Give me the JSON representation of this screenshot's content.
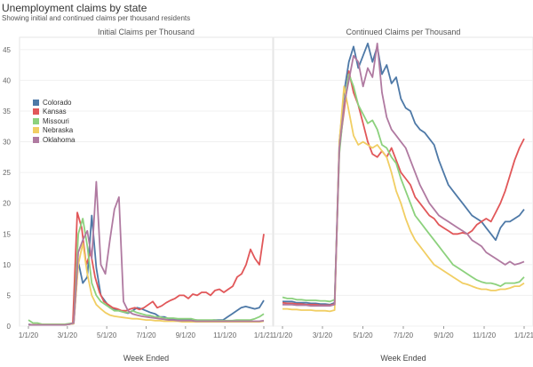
{
  "header": {
    "title": "Unemployment claims by state",
    "subtitle": "Showing initial and continued claims per thousand residents"
  },
  "colors": {
    "Colorado": "#4e79a7",
    "Kansas": "#e15759",
    "Missouri": "#8cd17d",
    "Nebraska": "#f1ce63",
    "Oklahoma": "#b07aa1"
  },
  "legend": [
    "Colorado",
    "Kansas",
    "Missouri",
    "Nebraska",
    "Oklahoma"
  ],
  "chart_data": [
    {
      "type": "line",
      "title": "Initial Claims per Thousand",
      "xlabel": "Week Ended",
      "ylabel": "",
      "ylim": [
        0,
        47
      ],
      "yticks": [
        0,
        5,
        10,
        15,
        20,
        25,
        30,
        35,
        40,
        45
      ],
      "xticks": [
        "1/1/20",
        "3/1/20",
        "5/1/20",
        "7/1/20",
        "9/1/20",
        "11/1/20",
        "1/1/21"
      ],
      "x_range_weeks": [
        0,
        52
      ],
      "series": [
        {
          "name": "Colorado",
          "values": [
            0.3,
            0.2,
            0.2,
            0.2,
            0.2,
            0.2,
            0.2,
            0.2,
            0.2,
            0.3,
            0.4,
            10.5,
            7.0,
            8.0,
            18.0,
            9.5,
            5.0,
            4.0,
            3.0,
            2.8,
            2.5,
            2.3,
            2.1,
            2.5,
            3.0,
            2.8,
            2.5,
            2.2,
            2.0,
            1.5,
            1.5,
            1.2,
            1.2,
            1.0,
            1.0,
            1.0,
            1.0,
            1.0,
            0.9,
            0.9,
            0.9,
            1.0,
            1.0,
            1.0,
            1.5,
            2.0,
            2.5,
            3.0,
            3.2,
            3.0,
            2.8,
            3.0,
            4.2
          ]
        },
        {
          "name": "Kansas",
          "values": [
            0.2,
            0.2,
            0.2,
            0.2,
            0.2,
            0.2,
            0.2,
            0.2,
            0.2,
            0.3,
            0.5,
            18.5,
            16.0,
            10.0,
            12.0,
            8.0,
            5.5,
            4.0,
            3.5,
            3.0,
            2.8,
            2.5,
            2.5,
            2.8,
            3.0,
            2.7,
            3.0,
            3.5,
            4.0,
            3.0,
            3.3,
            3.8,
            4.2,
            4.5,
            5.0,
            5.0,
            4.5,
            5.2,
            5.0,
            5.5,
            5.5,
            5.0,
            5.8,
            6.0,
            5.5,
            6.0,
            6.5,
            8.0,
            8.5,
            10.0,
            12.5,
            11.0,
            10.0,
            15.0
          ]
        },
        {
          "name": "Missouri",
          "values": [
            1.0,
            0.5,
            0.5,
            0.3,
            0.3,
            0.3,
            0.3,
            0.3,
            0.3,
            0.4,
            0.5,
            15.0,
            17.5,
            13.0,
            7.0,
            5.0,
            4.0,
            3.5,
            3.0,
            2.5,
            2.5,
            2.3,
            2.2,
            2.5,
            2.2,
            2.0,
            1.8,
            1.7,
            1.5,
            1.5,
            1.3,
            1.3,
            1.3,
            1.2,
            1.2,
            1.2,
            1.2,
            1.0,
            1.0,
            1.0,
            1.0,
            1.0,
            0.9,
            0.9,
            0.9,
            0.9,
            1.0,
            1.0,
            1.0,
            1.0,
            1.2,
            1.5,
            2.0
          ]
        },
        {
          "name": "Nebraska",
          "values": [
            0.2,
            0.2,
            0.2,
            0.2,
            0.2,
            0.2,
            0.2,
            0.2,
            0.2,
            0.3,
            0.4,
            10.0,
            13.5,
            8.5,
            5.0,
            3.5,
            2.8,
            2.2,
            1.8,
            1.6,
            1.5,
            1.4,
            1.3,
            1.2,
            1.2,
            1.1,
            1.0,
            1.0,
            0.9,
            0.9,
            0.8,
            0.8,
            0.8,
            0.8,
            0.7,
            0.7,
            0.7,
            0.7,
            0.7,
            0.7,
            0.7,
            0.7,
            0.7,
            0.7,
            0.7,
            0.7,
            0.7,
            0.7,
            0.7,
            0.7,
            0.7,
            0.7,
            0.8
          ]
        },
        {
          "name": "Oklahoma",
          "values": [
            0.2,
            0.2,
            0.2,
            0.2,
            0.2,
            0.2,
            0.2,
            0.2,
            0.2,
            0.3,
            0.5,
            12.0,
            14.0,
            15.5,
            11.0,
            23.5,
            10.0,
            8.5,
            14.0,
            19.0,
            21.0,
            4.0,
            2.5,
            2.0,
            1.8,
            1.6,
            1.5,
            1.4,
            1.3,
            1.2,
            1.1,
            1.0,
            1.0,
            0.9,
            0.9,
            0.9,
            0.9,
            0.8,
            0.8,
            0.8,
            0.8,
            0.8,
            0.8,
            0.8,
            0.8,
            0.8,
            0.8,
            0.8,
            0.8,
            0.8,
            0.8,
            0.8,
            0.9
          ]
        }
      ]
    },
    {
      "type": "line",
      "title": "Continued Claims per Thousand",
      "xlabel": "Week Ended",
      "ylabel": "",
      "ylim": [
        0,
        47
      ],
      "xticks": [
        "1/1/20",
        "3/1/20",
        "5/1/20",
        "7/1/20",
        "9/1/20",
        "11/1/20",
        "1/1/21"
      ],
      "x_range_weeks": [
        0,
        52
      ],
      "series": [
        {
          "name": "Colorado",
          "values": [
            4.0,
            4.0,
            4.0,
            3.8,
            3.8,
            3.8,
            3.7,
            3.7,
            3.6,
            3.6,
            3.5,
            3.8,
            30.0,
            38.0,
            43.0,
            45.5,
            42.0,
            44.0,
            46.0,
            43.0,
            45.5,
            41.0,
            42.5,
            39.5,
            40.5,
            37.0,
            35.5,
            35.0,
            33.0,
            32.0,
            31.5,
            30.5,
            29.5,
            27.0,
            25.0,
            23.0,
            22.0,
            21.0,
            20.0,
            19.0,
            18.0,
            17.5,
            17.0,
            16.0,
            15.0,
            14.0,
            16.0,
            17.0,
            17.0,
            17.5,
            18.0,
            19.0
          ]
        },
        {
          "name": "Kansas",
          "values": [
            3.8,
            3.7,
            3.7,
            3.6,
            3.6,
            3.5,
            3.5,
            3.5,
            3.4,
            3.4,
            3.4,
            3.6,
            29.0,
            35.0,
            41.5,
            38.0,
            36.0,
            33.0,
            30.0,
            28.0,
            27.5,
            28.5,
            27.5,
            29.0,
            27.0,
            25.0,
            24.0,
            23.0,
            21.0,
            20.0,
            19.0,
            18.0,
            17.5,
            16.5,
            16.0,
            15.5,
            15.0,
            15.0,
            15.2,
            15.0,
            15.5,
            16.5,
            17.0,
            17.5,
            17.0,
            18.5,
            20.0,
            22.0,
            24.5,
            27.0,
            29.0,
            30.5
          ]
        },
        {
          "name": "Missouri",
          "values": [
            4.7,
            4.5,
            4.5,
            4.3,
            4.3,
            4.2,
            4.2,
            4.2,
            4.1,
            4.1,
            4.0,
            4.3,
            28.0,
            36.0,
            41.0,
            39.0,
            36.0,
            34.5,
            33.0,
            33.5,
            32.0,
            29.5,
            29.0,
            27.5,
            26.5,
            24.0,
            22.0,
            20.0,
            18.0,
            17.0,
            16.0,
            15.0,
            14.0,
            13.0,
            12.0,
            11.0,
            10.0,
            9.5,
            9.0,
            8.5,
            8.0,
            7.5,
            7.2,
            7.0,
            7.0,
            6.8,
            6.5,
            7.0,
            7.0,
            7.0,
            7.2,
            8.0
          ]
        },
        {
          "name": "Nebraska",
          "values": [
            2.8,
            2.8,
            2.7,
            2.7,
            2.6,
            2.6,
            2.6,
            2.5,
            2.5,
            2.5,
            2.4,
            2.6,
            30.0,
            39.0,
            35.0,
            31.0,
            29.5,
            30.0,
            29.5,
            29.0,
            29.5,
            28.5,
            27.5,
            25.0,
            22.0,
            20.0,
            17.5,
            15.5,
            14.0,
            13.0,
            12.0,
            11.0,
            10.0,
            9.5,
            9.0,
            8.5,
            8.0,
            7.5,
            7.0,
            6.8,
            6.5,
            6.2,
            6.0,
            6.0,
            5.8,
            5.8,
            6.0,
            6.0,
            6.2,
            6.5,
            6.5,
            7.0
          ]
        },
        {
          "name": "Oklahoma",
          "values": [
            3.5,
            3.5,
            3.5,
            3.4,
            3.4,
            3.4,
            3.3,
            3.3,
            3.3,
            3.3,
            3.3,
            3.5,
            29.0,
            36.0,
            40.0,
            44.0,
            43.0,
            39.0,
            42.0,
            40.5,
            46.0,
            38.0,
            34.0,
            32.0,
            31.0,
            30.0,
            29.0,
            27.0,
            25.0,
            23.0,
            21.5,
            20.0,
            19.0,
            18.0,
            17.5,
            17.0,
            16.5,
            16.0,
            15.5,
            15.0,
            14.0,
            13.5,
            13.0,
            12.0,
            11.5,
            11.0,
            10.5,
            10.0,
            10.5,
            10.0,
            10.2,
            10.5
          ]
        }
      ]
    }
  ]
}
